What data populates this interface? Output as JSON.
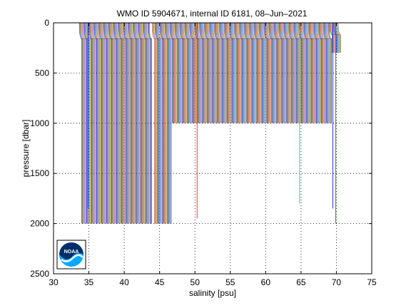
{
  "chart_data": {
    "type": "line",
    "title": "WMO ID 5904671, internal ID 6181, 08–Jun–2021",
    "xlabel": "salinity [psu]",
    "ylabel": "pressure [dbar]",
    "xlim": [
      30,
      75
    ],
    "ylim": [
      0,
      2500
    ],
    "y_reversed": true,
    "grid": true,
    "grid_style": "dotted",
    "x_ticks": [
      30,
      35,
      40,
      45,
      50,
      55,
      60,
      65,
      70,
      75
    ],
    "y_ticks": [
      0,
      500,
      1000,
      1500,
      2000,
      2500
    ],
    "profile_offset_psu": 0.1,
    "series_colors": [
      "#0000ff",
      "#008000",
      "#ff0000",
      "#00bfbf",
      "#bf00bf",
      "#bfbf00",
      "#404040"
    ],
    "profile_groups": [
      {
        "start_salinity": 34.0,
        "count": 60,
        "max_pressure": 2000
      },
      {
        "start_salinity": 40.0,
        "count": 40,
        "max_pressure": 2000
      },
      {
        "start_salinity": 44.3,
        "count": 25,
        "max_pressure": 2000
      },
      {
        "start_salinity": 46.8,
        "count": 36,
        "max_pressure": 1000
      },
      {
        "start_salinity": 50.4,
        "count": 95,
        "max_pressure": 1000
      },
      {
        "start_salinity": 59.9,
        "count": 95,
        "max_pressure": 1000
      },
      {
        "start_salinity": 69.4,
        "count": 13,
        "max_pressure": 300
      }
    ],
    "isolated_profiles": [
      {
        "salinity": 34.9,
        "max_pressure": 1850,
        "color": "#0000ff"
      },
      {
        "salinity": 50.3,
        "max_pressure": 1950,
        "color": "#ff0000"
      },
      {
        "salinity": 64.8,
        "max_pressure": 1800,
        "color": "#00bfbf"
      },
      {
        "salinity": 69.5,
        "max_pressure": 1850,
        "color": "#0000ff"
      },
      {
        "salinity": 69.9,
        "max_pressure": 2000,
        "color": "#008000"
      }
    ],
    "logo": {
      "icon": "noaa-logo-icon",
      "text": "NOAA"
    }
  }
}
